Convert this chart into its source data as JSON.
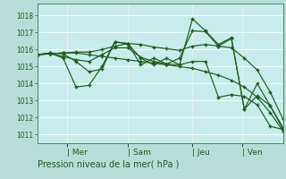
{
  "xlabel": "Pression niveau de la mer( hPa )",
  "bg_color": "#b8ddd8",
  "plot_bg_color": "#c8ecec",
  "grid_color": "#aacccc",
  "grid_minor_color": "#c0e0e0",
  "line_color": "#1a5c1a",
  "ylim": [
    1010.5,
    1018.7
  ],
  "yticks": [
    1011,
    1012,
    1013,
    1014,
    1015,
    1016,
    1017,
    1018
  ],
  "xtick_labels": [
    "| Mer",
    "| Sam",
    "| Jeu",
    "| Ven"
  ],
  "xtick_positions": [
    0.12,
    0.37,
    0.63,
    0.835
  ],
  "num_points": 20,
  "lines": [
    [
      1015.7,
      1015.75,
      1015.8,
      1015.85,
      1015.85,
      1016.0,
      1016.2,
      1016.35,
      1016.3,
      1016.15,
      1016.05,
      1015.95,
      1016.2,
      1016.3,
      1016.2,
      1016.1,
      1015.5,
      1014.8,
      1013.5,
      1011.9
    ],
    [
      1015.7,
      1015.8,
      1015.75,
      1015.3,
      1014.7,
      1014.85,
      1016.45,
      1016.35,
      1015.1,
      1015.5,
      1015.15,
      1015.5,
      1017.1,
      1017.05,
      1016.2,
      1016.65,
      1012.5,
      1013.3,
      1012.7,
      1011.3
    ],
    [
      1015.7,
      1015.8,
      1015.5,
      1013.8,
      1013.9,
      1015.0,
      1016.45,
      1016.35,
      1015.5,
      1015.1,
      1015.5,
      1015.1,
      1017.8,
      1017.1,
      1016.3,
      1016.7,
      1012.5,
      1014.0,
      1012.7,
      1011.4
    ],
    [
      1015.7,
      1015.75,
      1015.8,
      1015.8,
      1015.7,
      1015.6,
      1015.5,
      1015.4,
      1015.3,
      1015.2,
      1015.1,
      1015.0,
      1014.9,
      1014.7,
      1014.5,
      1014.2,
      1013.8,
      1013.2,
      1012.3,
      1011.2
    ],
    [
      1015.7,
      1015.75,
      1015.6,
      1015.4,
      1015.3,
      1015.7,
      1016.1,
      1016.1,
      1015.55,
      1015.3,
      1015.15,
      1015.1,
      1015.3,
      1015.3,
      1013.2,
      1013.35,
      1013.25,
      1012.75,
      1011.5,
      1011.3
    ]
  ]
}
